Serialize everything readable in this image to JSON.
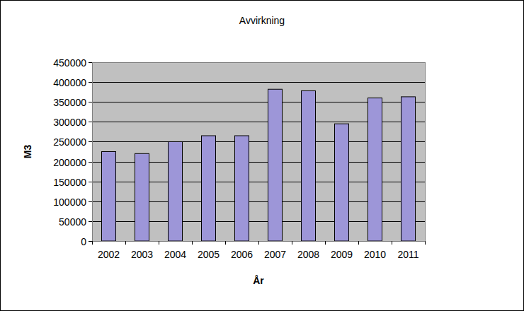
{
  "chart_data": {
    "type": "bar",
    "title": "Avvirkning",
    "x_label": "År",
    "y_label": "M3",
    "categories": [
      "2002",
      "2003",
      "2004",
      "2005",
      "2006",
      "2007",
      "2008",
      "2009",
      "2010",
      "2011"
    ],
    "values": [
      225000,
      220000,
      250000,
      265000,
      265000,
      382000,
      378000,
      295000,
      360000,
      363000
    ],
    "color": "#9d96d8",
    "ylim": [
      0,
      450000
    ],
    "yticks": [
      0,
      50000,
      100000,
      150000,
      200000,
      250000,
      300000,
      350000,
      400000,
      450000
    ],
    "grid": true
  }
}
